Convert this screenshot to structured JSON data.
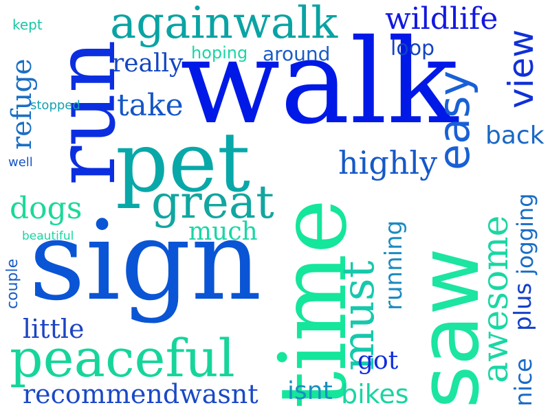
{
  "words": [
    {
      "text": "walk",
      "color": "#0019e6"
    },
    {
      "text": "sign",
      "color": "#0a55d5"
    },
    {
      "text": "pet",
      "color": "#08a8a8"
    },
    {
      "text": "time",
      "color": "#14e69b"
    },
    {
      "text": "saw",
      "color": "#1be5a0"
    },
    {
      "text": "run",
      "color": "#0b2fe0"
    },
    {
      "text": "againwalk",
      "color": "#0aa3a3"
    },
    {
      "text": "peaceful",
      "color": "#16d59a"
    },
    {
      "text": "easy",
      "color": "#1960d6"
    },
    {
      "text": "great",
      "color": "#12a6a0"
    },
    {
      "text": "must",
      "color": "#16c8ac"
    },
    {
      "text": "awesome",
      "color": "#1ad7a3"
    },
    {
      "text": "wildlife",
      "color": "#1218e0"
    },
    {
      "text": "view",
      "color": "#1030d8"
    },
    {
      "text": "highly",
      "color": "#1558c8"
    },
    {
      "text": "dogs",
      "color": "#19d99a"
    },
    {
      "text": "recommendwasnt",
      "color": "#1a48c6"
    },
    {
      "text": "refuge",
      "color": "#1a6ec6"
    },
    {
      "text": "take",
      "color": "#1456c8"
    },
    {
      "text": "really",
      "color": "#1446c2"
    },
    {
      "text": "much",
      "color": "#1ad6a4"
    },
    {
      "text": "back",
      "color": "#1a68c6"
    },
    {
      "text": "little",
      "color": "#1e44c4"
    },
    {
      "text": "running",
      "color": "#1c8ac0"
    },
    {
      "text": "jogging",
      "color": "#1a6cc6"
    },
    {
      "text": "bikes",
      "color": "#1ad4a2"
    },
    {
      "text": "isnt",
      "color": "#1a90c0"
    },
    {
      "text": "got",
      "color": "#0e2ce0"
    },
    {
      "text": "nice",
      "color": "#1a6ac6"
    },
    {
      "text": "plus",
      "color": "#1440c8"
    },
    {
      "text": "loop",
      "color": "#1442c2"
    },
    {
      "text": "around",
      "color": "#1a5cc6"
    },
    {
      "text": "hoping",
      "color": "#1ad6a4"
    },
    {
      "text": "couple",
      "color": "#1a5cc6"
    },
    {
      "text": "kept",
      "color": "#18c6a6"
    },
    {
      "text": "stopped",
      "color": "#18a0b0"
    },
    {
      "text": "well",
      "color": "#1652c6"
    },
    {
      "text": "beautiful",
      "color": "#18d6a2"
    }
  ]
}
